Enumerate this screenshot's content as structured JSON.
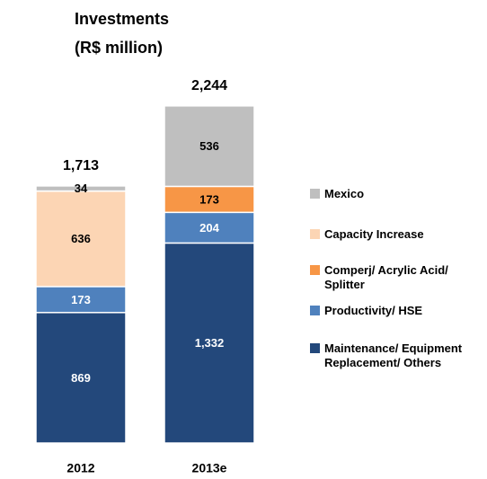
{
  "chart_data": {
    "type": "stacked_bar",
    "title": "Investments",
    "subtitle": "(R$ million)",
    "categories": [
      "2012",
      "2013e"
    ],
    "series": [
      {
        "name": "Maintenance/ Equipment Replacement/ Others",
        "color": "#23487b",
        "values": [
          869,
          1332
        ],
        "value_labels": [
          "869",
          "1,332"
        ]
      },
      {
        "name": "Productivity/ HSE",
        "color": "#4f81bd",
        "values": [
          173,
          204
        ],
        "value_labels": [
          "173",
          "204"
        ]
      },
      {
        "name": "Comperj/ Acrylic Acid/ Splitter",
        "color": "#f79646",
        "values": [
          null,
          173
        ],
        "value_labels": [
          null,
          "173"
        ]
      },
      {
        "name": "Capacity Increase",
        "color": "#fcd5b4",
        "values": [
          636,
          null
        ],
        "value_labels": [
          "636",
          null
        ]
      },
      {
        "name": "Mexico",
        "color": "#bfbfbf",
        "values": [
          34,
          536
        ],
        "value_labels": [
          "34",
          "536"
        ]
      }
    ],
    "totals": [
      1713,
      2244
    ],
    "total_labels": [
      "1,713",
      "2,244"
    ],
    "legend": "right"
  }
}
